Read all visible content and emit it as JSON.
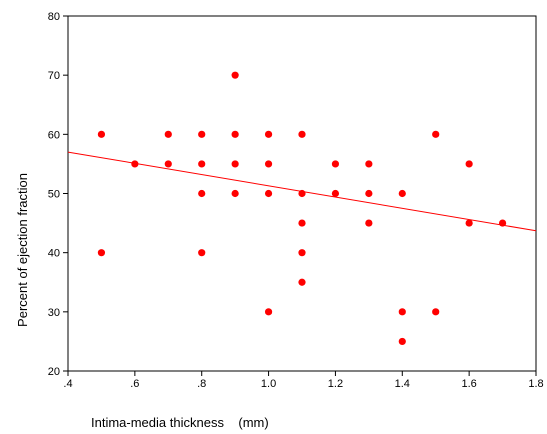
{
  "chart_data": {
    "type": "scatter",
    "title": "",
    "xlabel": "Intima-media thickness    (mm)",
    "ylabel": "Percent of ejection fraction",
    "xlim": [
      0.4,
      1.8
    ],
    "ylim": [
      20,
      80
    ],
    "x_ticks": [
      0.4,
      0.6,
      0.8,
      1.0,
      1.2,
      1.4,
      1.6,
      1.8
    ],
    "x_tick_labels": [
      ".4",
      ".6",
      ".8",
      "1.0",
      "1.2",
      "1.4",
      "1.6",
      "1.8"
    ],
    "y_ticks": [
      20,
      30,
      40,
      50,
      60,
      70,
      80
    ],
    "y_tick_labels": [
      "20",
      "30",
      "40",
      "50",
      "60",
      "70",
      "80"
    ],
    "grid": false,
    "marker_color": "#ff0000",
    "fit_line_color": "#ff0000",
    "series": [
      {
        "points": [
          [
            0.5,
            60
          ],
          [
            0.5,
            40
          ],
          [
            0.6,
            55
          ],
          [
            0.7,
            60
          ],
          [
            0.7,
            55
          ],
          [
            0.8,
            60
          ],
          [
            0.8,
            55
          ],
          [
            0.8,
            50
          ],
          [
            0.8,
            40
          ],
          [
            0.9,
            70
          ],
          [
            0.9,
            60
          ],
          [
            0.9,
            55
          ],
          [
            0.9,
            50
          ],
          [
            1.0,
            60
          ],
          [
            1.0,
            55
          ],
          [
            1.0,
            50
          ],
          [
            1.0,
            30
          ],
          [
            1.1,
            60
          ],
          [
            1.1,
            50
          ],
          [
            1.1,
            45
          ],
          [
            1.1,
            40
          ],
          [
            1.1,
            35
          ],
          [
            1.2,
            55
          ],
          [
            1.2,
            50
          ],
          [
            1.3,
            55
          ],
          [
            1.3,
            50
          ],
          [
            1.3,
            45
          ],
          [
            1.4,
            50
          ],
          [
            1.4,
            30
          ],
          [
            1.4,
            25
          ],
          [
            1.5,
            60
          ],
          [
            1.5,
            30
          ],
          [
            1.6,
            55
          ],
          [
            1.6,
            45
          ],
          [
            1.7,
            45
          ]
        ]
      }
    ],
    "fit_line": {
      "x": [
        0.4,
        1.8
      ],
      "y": [
        57.0,
        43.7
      ]
    }
  }
}
